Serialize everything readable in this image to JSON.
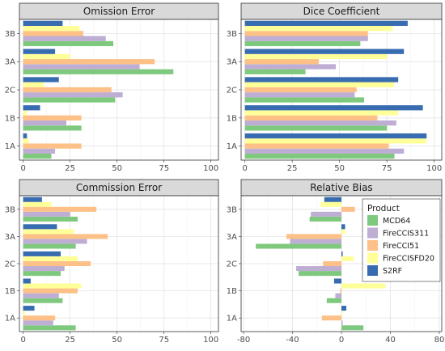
{
  "colors": {
    "MCD64": "#7fc97f",
    "FireCCIS311": "#beaed4",
    "FireCCI51": "#fdc086",
    "FireCCISFD20": "#ffff99",
    "S2RF": "#386cb0"
  },
  "legend": {
    "title": "Product",
    "items": [
      "MCD64",
      "FireCCIS311",
      "FireCCI51",
      "FireCCISFD20",
      "S2RF"
    ]
  },
  "chart_data": [
    {
      "type": "bar",
      "orientation": "horizontal",
      "title": "Omission Error",
      "categories": [
        "1A",
        "1B",
        "2C",
        "3A",
        "3B"
      ],
      "xlim": [
        -2,
        104
      ],
      "xticks": [
        0,
        25,
        50,
        75,
        100
      ],
      "series": [
        {
          "name": "MCD64",
          "values": [
            15,
            31,
            49,
            80,
            48
          ]
        },
        {
          "name": "FireCCIS311",
          "values": [
            17,
            23,
            53,
            62,
            44
          ]
        },
        {
          "name": "FireCCI51",
          "values": [
            31,
            31,
            47,
            70,
            32
          ]
        },
        {
          "name": "FireCCISFD20",
          "values": [
            3,
            2,
            11,
            25,
            30
          ]
        },
        {
          "name": "S2RF",
          "values": [
            2,
            9,
            19,
            17,
            21
          ]
        }
      ]
    },
    {
      "type": "bar",
      "orientation": "horizontal",
      "title": "Dice Coefficient",
      "categories": [
        "1A",
        "1B",
        "2C",
        "3A",
        "3B"
      ],
      "xlim": [
        -2,
        104
      ],
      "xticks": [
        0,
        25,
        50,
        75,
        100
      ],
      "series": [
        {
          "name": "MCD64",
          "values": [
            79,
            75,
            63,
            32,
            61
          ]
        },
        {
          "name": "FireCCIS311",
          "values": [
            84,
            80,
            58,
            48,
            65
          ]
        },
        {
          "name": "FireCCI51",
          "values": [
            76,
            70,
            59,
            39,
            65
          ]
        },
        {
          "name": "FireCCISFD20",
          "values": [
            96,
            81,
            79,
            75,
            78
          ]
        },
        {
          "name": "S2RF",
          "values": [
            96,
            94,
            81,
            84,
            86
          ]
        }
      ]
    },
    {
      "type": "bar",
      "orientation": "horizontal",
      "title": "Commission Error",
      "categories": [
        "1A",
        "1B",
        "2C",
        "3A",
        "3B"
      ],
      "xlim": [
        -2,
        104
      ],
      "xticks": [
        0,
        25,
        50,
        75,
        100
      ],
      "series": [
        {
          "name": "MCD64",
          "values": [
            28,
            21,
            20,
            28,
            29
          ]
        },
        {
          "name": "FireCCIS311",
          "values": [
            16,
            19,
            22,
            34,
            25
          ]
        },
        {
          "name": "FireCCI51",
          "values": [
            17,
            29,
            36,
            45,
            39
          ]
        },
        {
          "name": "FireCCISFD20",
          "values": [
            1,
            31,
            29,
            27,
            15
          ]
        },
        {
          "name": "S2RF",
          "values": [
            6,
            4,
            20,
            18,
            10
          ]
        }
      ]
    },
    {
      "type": "bar",
      "orientation": "horizontal",
      "title": "Relative Bias",
      "categories": [
        "1A",
        "1B",
        "2C",
        "3A",
        "3B"
      ],
      "xlim": [
        -82,
        82
      ],
      "xticks": [
        -80,
        -40,
        0,
        40,
        80
      ],
      "series": [
        {
          "name": "MCD64",
          "values": [
            18,
            -12,
            -35,
            -70,
            -26
          ]
        },
        {
          "name": "FireCCIS311",
          "values": [
            1,
            -5,
            -37,
            -42,
            -25
          ]
        },
        {
          "name": "FireCCI51",
          "values": [
            -16,
            -1,
            -15,
            -45,
            11
          ]
        },
        {
          "name": "FireCCISFD20",
          "values": [
            1,
            36,
            10,
            3,
            -17
          ]
        },
        {
          "name": "S2RF",
          "values": [
            4,
            -6,
            1,
            3,
            -14
          ]
        }
      ]
    }
  ]
}
